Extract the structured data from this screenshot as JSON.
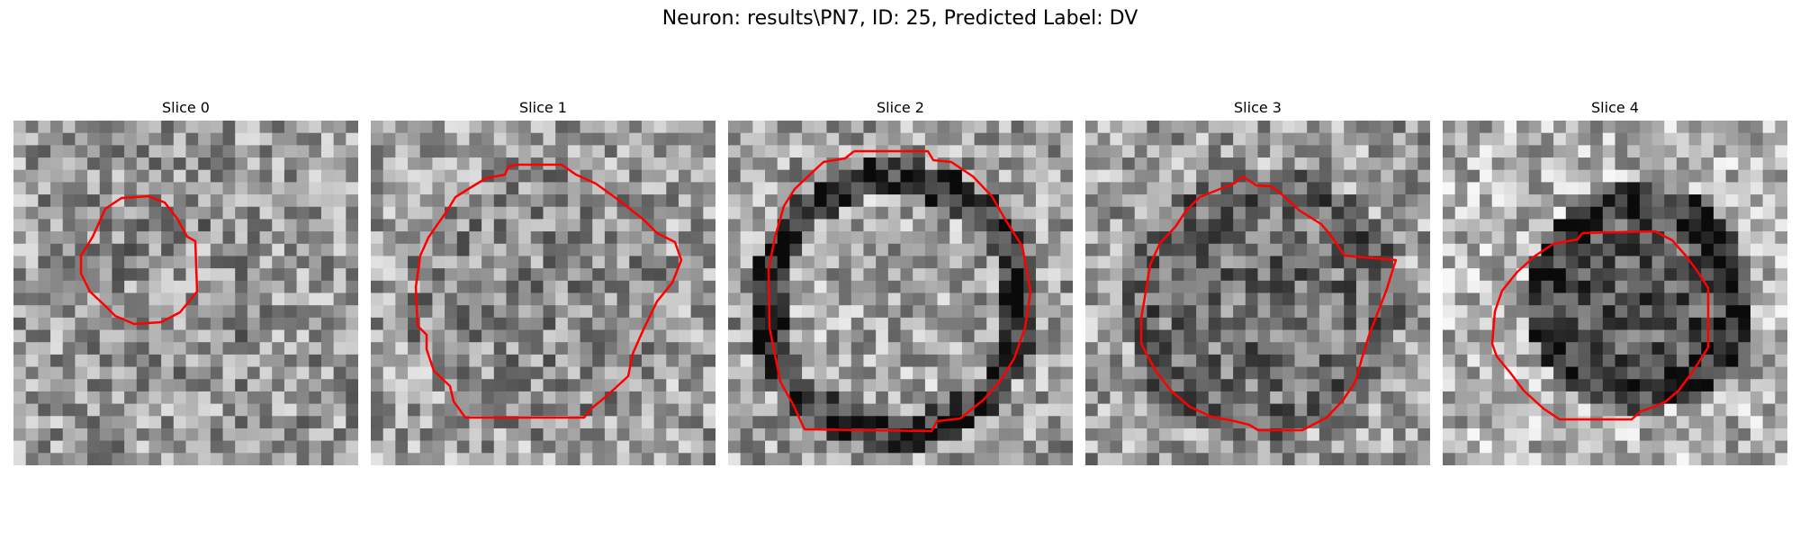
{
  "figure": {
    "title": "Neuron: results\\PN7, ID: 25, Predicted Label: DV"
  },
  "colors": {
    "outline": "#ff0000",
    "background": "#ffffff"
  },
  "panels": [
    {
      "title": "Slice 0"
    },
    {
      "title": "Slice 1"
    },
    {
      "title": "Slice 2"
    },
    {
      "title": "Slice 3"
    },
    {
      "title": "Slice 4"
    }
  ]
}
